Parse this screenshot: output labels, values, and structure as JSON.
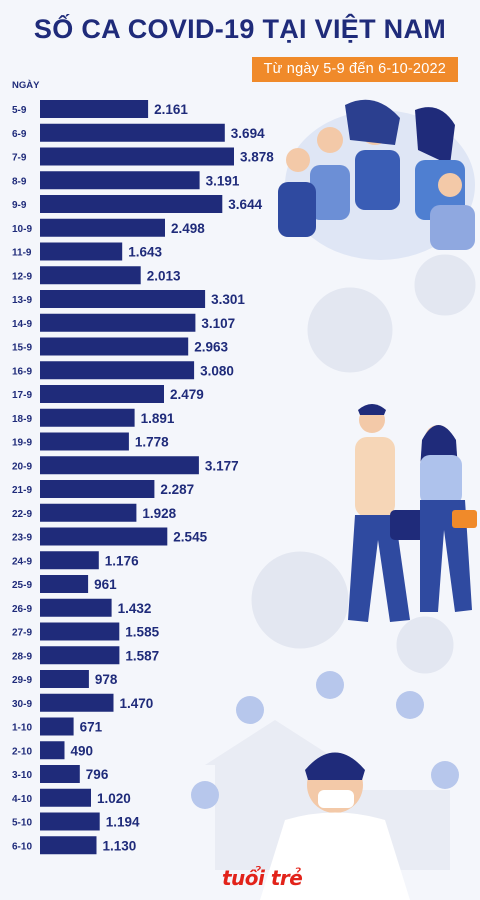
{
  "title": "SỐ CA COVID-19 TẠI VIỆT NAM",
  "subtitle": "Từ ngày 5-9 đến 6-10-2022",
  "logo": "tuổi trẻ",
  "colors": {
    "bar": "#1f2b7a",
    "accent": "#f08a2a",
    "background": "#f4f6fb"
  },
  "chart_data": {
    "type": "bar",
    "orientation": "horizontal",
    "title": "SỐ CA COVID-19 TẠI VIỆT NAM",
    "subtitle": "Từ ngày 5-9 đến 6-10-2022",
    "ylabel": "NGÀY",
    "xlabel": "",
    "categories": [
      "5-9",
      "6-9",
      "7-9",
      "8-9",
      "9-9",
      "10-9",
      "11-9",
      "12-9",
      "13-9",
      "14-9",
      "15-9",
      "16-9",
      "17-9",
      "18-9",
      "19-9",
      "20-9",
      "21-9",
      "22-9",
      "23-9",
      "24-9",
      "25-9",
      "26-9",
      "27-9",
      "28-9",
      "29-9",
      "30-9",
      "1-10",
      "2-10",
      "3-10",
      "4-10",
      "5-10",
      "6-10"
    ],
    "values": [
      2161,
      3694,
      3878,
      3191,
      3644,
      2498,
      1643,
      2013,
      3301,
      3107,
      2963,
      3080,
      2479,
      1891,
      1778,
      3177,
      2287,
      1928,
      2545,
      1176,
      961,
      1432,
      1585,
      1587,
      978,
      1470,
      671,
      490,
      796,
      1020,
      1194,
      1130
    ],
    "labels": [
      "2.161",
      "3.694",
      "3.878",
      "3.191",
      "3.644",
      "2.498",
      "1.643",
      "2.013",
      "3.301",
      "3.107",
      "2.963",
      "3.080",
      "2.479",
      "1.891",
      "1.778",
      "3.177",
      "2.287",
      "1.928",
      "2.545",
      "1.176",
      "961",
      "1.432",
      "1.585",
      "1.587",
      "978",
      "1.470",
      "671",
      "490",
      "796",
      "1.020",
      "1.194",
      "1.130"
    ],
    "xlim": [
      0,
      3878
    ],
    "grid": false,
    "legend": "none"
  }
}
